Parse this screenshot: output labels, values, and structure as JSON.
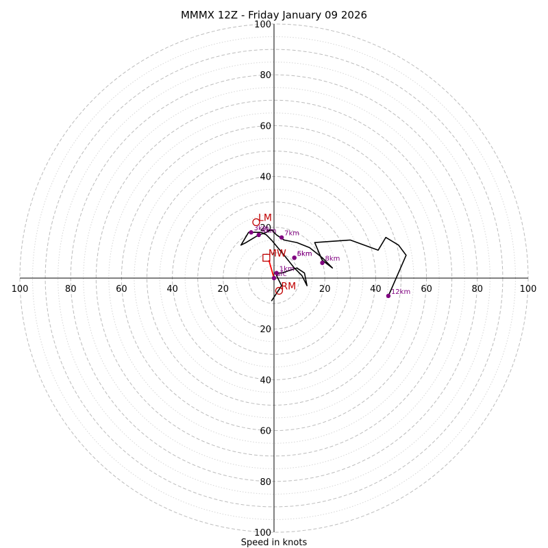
{
  "chart_data": {
    "type": "hodograph",
    "title": "MMMX 12Z - Friday January 09 2026",
    "xlabel": "Speed in knots",
    "units": "knots",
    "axis_range": [
      -100,
      100
    ],
    "tick_values": [
      20,
      40,
      60,
      80,
      100
    ],
    "ring_major": [
      10,
      20,
      30,
      40,
      50,
      60,
      70,
      80,
      90,
      100
    ],
    "ring_minor": [
      5,
      15,
      25,
      35,
      45,
      55,
      65,
      75,
      85,
      95
    ],
    "hodo_trace": [
      [
        -1,
        -9
      ],
      [
        3,
        -3
      ],
      [
        1,
        1
      ],
      [
        2,
        2
      ],
      [
        3,
        2
      ],
      [
        9,
        4
      ],
      [
        12,
        2
      ],
      [
        13,
        -3
      ],
      [
        11,
        1
      ],
      [
        8,
        4
      ],
      [
        4,
        9
      ],
      [
        -1,
        15
      ],
      [
        -3,
        17
      ],
      [
        -5,
        18
      ],
      [
        -10,
        18
      ],
      [
        -13,
        13
      ],
      [
        -11,
        14
      ],
      [
        -6,
        17
      ],
      [
        -3,
        18
      ],
      [
        -1,
        19
      ],
      [
        1,
        17
      ],
      [
        4,
        15
      ],
      [
        9,
        14
      ],
      [
        14,
        12
      ],
      [
        19,
        8
      ],
      [
        22,
        5
      ],
      [
        23,
        4
      ],
      [
        19,
        7
      ],
      [
        16,
        14
      ],
      [
        30,
        15
      ],
      [
        41,
        11
      ],
      [
        44,
        16
      ],
      [
        49,
        13
      ],
      [
        52,
        9
      ],
      [
        45,
        -7
      ]
    ],
    "height_markers": [
      {
        "label": "sfc",
        "u": 0,
        "v": 0
      },
      {
        "label": "1km",
        "u": 1,
        "v": 2
      },
      {
        "label": "3km",
        "u": -9,
        "v": 18
      },
      {
        "label": "4km",
        "u": -6,
        "v": 17
      },
      {
        "label": "5km",
        "u": 8,
        "v": 8
      },
      {
        "label": "6km",
        "u": 8,
        "v": 8
      },
      {
        "label": "7km",
        "u": 3,
        "v": 16
      },
      {
        "label": "8km",
        "u": 19,
        "v": 6
      },
      {
        "label": "12km",
        "u": 45,
        "v": -7
      }
    ],
    "storm_motion": [
      {
        "label": "LM",
        "u": -7,
        "v": 22,
        "marker": "circle"
      },
      {
        "label": "RM",
        "u": 2,
        "v": -5,
        "marker": "circle"
      },
      {
        "label": "MW",
        "u": -3,
        "v": 8,
        "marker": "square"
      }
    ],
    "shear_vector": {
      "from": [
        0,
        0
      ],
      "to": [
        -2,
        7
      ]
    },
    "colors": {
      "trace": "#000000",
      "height_marker": "#800080",
      "storm_motion": "#c00000",
      "shear_vector": "#ff0000",
      "ring": "#bbbbbb",
      "axis": "#000000"
    }
  }
}
